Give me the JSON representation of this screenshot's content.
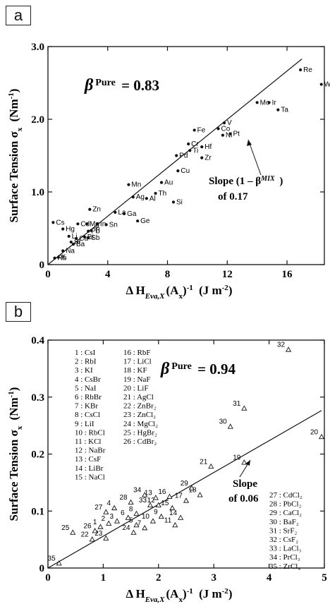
{
  "chart_data": [
    {
      "panel": "a",
      "type": "scatter",
      "xlabel_prefix": "Δ H",
      "xlabel_sub": "Eva,X",
      "xlabel_suffix": "(A",
      "xlabel_sub2": "x",
      "xlabel_end": ")",
      "xlabel_sup": "-1",
      "xlabel_units": "(J m",
      "xlabel_units_sup": "-2",
      "xlabel_units_end": ")",
      "ylabel": "Surface Tension σ",
      "ylabel_sub": "x",
      "ylabel_units": "(Nm",
      "ylabel_units_sup": "-1",
      "ylabel_units_end": ")",
      "xlim": [
        0,
        18.5
      ],
      "ylim": [
        0,
        3.0
      ],
      "xticks": [
        0,
        4,
        8,
        12,
        16
      ],
      "yticks": [
        "0",
        "1.0",
        "2.0",
        "3.0"
      ],
      "ytick_values": [
        0,
        1.0,
        2.0,
        3.0
      ],
      "beta_label": "β",
      "beta_sup": "Pure",
      "beta_value": "= 0.83",
      "slope_text_1": "Slope (1 – β",
      "slope_sup": "MIX",
      "slope_text_1_end": ")",
      "slope_text_2": "of 0.17",
      "fit_line": {
        "x": [
          0,
          17
        ],
        "y": [
          0,
          2.83
        ]
      },
      "points": [
        {
          "label": "Cs",
          "x": 0.35,
          "y": 0.58
        },
        {
          "label": "Rb",
          "x": 0.45,
          "y": 0.09
        },
        {
          "label": "K",
          "x": 0.7,
          "y": 0.1
        },
        {
          "label": "Na",
          "x": 1.0,
          "y": 0.19
        },
        {
          "label": "Li",
          "x": 1.4,
          "y": 0.39
        },
        {
          "label": "Hg",
          "x": 1.0,
          "y": 0.49
        },
        {
          "label": "Sr",
          "x": 1.55,
          "y": 0.31
        },
        {
          "label": "Ba",
          "x": 1.7,
          "y": 0.28
        },
        {
          "label": "Ca",
          "x": 1.9,
          "y": 0.36
        },
        {
          "label": "Cd",
          "x": 2.0,
          "y": 0.56
        },
        {
          "label": "Bi",
          "x": 2.45,
          "y": 0.38
        },
        {
          "label": "Mg",
          "x": 2.6,
          "y": 0.56
        },
        {
          "label": "Sb",
          "x": 2.7,
          "y": 0.37
        },
        {
          "label": "Pb",
          "x": 2.7,
          "y": 0.46
        },
        {
          "label": "Tl",
          "x": 2.9,
          "y": 0.47
        },
        {
          "label": "Zn",
          "x": 2.8,
          "y": 0.76
        },
        {
          "label": "In",
          "x": 3.3,
          "y": 0.56
        },
        {
          "label": "Sn",
          "x": 3.9,
          "y": 0.55
        },
        {
          "label": "La",
          "x": 4.5,
          "y": 0.72
        },
        {
          "label": "Ga",
          "x": 5.1,
          "y": 0.7
        },
        {
          "label": "Ge",
          "x": 6.0,
          "y": 0.6
        },
        {
          "label": "Al",
          "x": 6.6,
          "y": 0.91
        },
        {
          "label": "Ag",
          "x": 5.7,
          "y": 0.93
        },
        {
          "label": "Mn",
          "x": 5.4,
          "y": 1.1
        },
        {
          "label": "Th",
          "x": 7.2,
          "y": 0.98
        },
        {
          "label": "Au",
          "x": 7.6,
          "y": 1.13
        },
        {
          "label": "Si",
          "x": 8.4,
          "y": 0.86
        },
        {
          "label": "Cu",
          "x": 8.7,
          "y": 1.29
        },
        {
          "label": "Pd",
          "x": 8.6,
          "y": 1.5
        },
        {
          "label": "Zr",
          "x": 10.3,
          "y": 1.47
        },
        {
          "label": "Ti",
          "x": 9.5,
          "y": 1.57
        },
        {
          "label": "Hf",
          "x": 10.3,
          "y": 1.62
        },
        {
          "label": "Cr",
          "x": 9.4,
          "y": 1.66
        },
        {
          "label": "Fe",
          "x": 9.8,
          "y": 1.85
        },
        {
          "label": "Co",
          "x": 11.4,
          "y": 1.87
        },
        {
          "label": "Ni",
          "x": 11.7,
          "y": 1.78
        },
        {
          "label": "V",
          "x": 11.8,
          "y": 1.95
        },
        {
          "label": "Pt",
          "x": 12.2,
          "y": 1.8
        },
        {
          "label": "Mo",
          "x": 14.0,
          "y": 2.23
        },
        {
          "label": "Ir",
          "x": 14.8,
          "y": 2.23
        },
        {
          "label": "Ta",
          "x": 15.4,
          "y": 2.13
        },
        {
          "label": "Re",
          "x": 16.9,
          "y": 2.68
        },
        {
          "label": "W",
          "x": 18.3,
          "y": 2.48
        }
      ]
    },
    {
      "panel": "b",
      "type": "scatter",
      "xlabel_prefix": "Δ H",
      "xlabel_sub": "Eva,X",
      "xlabel_suffix": "(A",
      "xlabel_sub2": "x",
      "xlabel_end": ")",
      "xlabel_sup": "-1",
      "xlabel_units": "(J m",
      "xlabel_units_sup": "-2",
      "xlabel_units_end": ")",
      "ylabel": "Surface Tension σ",
      "ylabel_sub": "x",
      "ylabel_units": "(Nm",
      "ylabel_units_sup": "-1",
      "ylabel_units_end": ")",
      "xlim": [
        0,
        5
      ],
      "ylim": [
        0,
        0.4
      ],
      "xticks": [
        0,
        1,
        2,
        3,
        4,
        5
      ],
      "yticks": [
        "0",
        "0.1",
        "0.2",
        "0.3",
        "0.4"
      ],
      "ytick_values": [
        0,
        0.1,
        0.2,
        0.3,
        0.4
      ],
      "beta_label": "β",
      "beta_sup": "Pure",
      "beta_value": "= 0.94",
      "slope_text_1": "Slope",
      "slope_text_2": "of 0.06",
      "fit_line": {
        "x": [
          0,
          4.95
        ],
        "y": [
          0,
          0.2765
        ]
      },
      "legend_left": [
        "1 : CsI",
        "2 : RbI",
        "3 : KI",
        "4 : CsBr",
        "5 : NaI",
        "6 : RbBr",
        "7 : KBr",
        "8 : CsCl",
        "9 : LiI",
        "10 : RbCl",
        "11 : KCl",
        "12 : NaBr",
        "13 : CsF",
        "14 : LiBr",
        "15 : NaCl"
      ],
      "legend_mid": [
        "16 : RbF",
        "17 : LiCl",
        "18 : KF",
        "19 : NaF",
        "20 : LiF",
        "21 : AgCl",
        "22 : ZnBr₂",
        "23 : ZnCl₂",
        "24 : MgCl₂",
        "25 : HgBr₂",
        "26 : CdBr₂"
      ],
      "legend_right": [
        "27 : CdCl₂",
        "28 : PbCl₂",
        "29 : CaCl₂",
        "30 : BaF₂",
        "31 : SrF₂",
        "32 : CsF₂",
        "33 : LaCl₃",
        "34 : PrCl₃",
        "35 : ZrCl₄"
      ],
      "points": [
        {
          "label": "1",
          "x": 0.95,
          "y": 0.072
        },
        {
          "label": "2",
          "x": 1.1,
          "y": 0.078
        },
        {
          "label": "3",
          "x": 1.25,
          "y": 0.082
        },
        {
          "label": "4",
          "x": 1.2,
          "y": 0.105
        },
        {
          "label": "5",
          "x": 1.6,
          "y": 0.075
        },
        {
          "label": "6",
          "x": 1.45,
          "y": 0.088
        },
        {
          "label": "7",
          "x": 1.75,
          "y": 0.07
        },
        {
          "label": "8",
          "x": 1.6,
          "y": 0.095
        },
        {
          "label": "9",
          "x": 2.05,
          "y": 0.09
        },
        {
          "label": "10",
          "x": 1.9,
          "y": 0.082
        },
        {
          "label": "11",
          "x": 2.3,
          "y": 0.075
        },
        {
          "label": "12",
          "x": 2.0,
          "y": 0.11
        },
        {
          "label": "13",
          "x": 1.95,
          "y": 0.123
        },
        {
          "label": "14",
          "x": 2.4,
          "y": 0.088
        },
        {
          "label": "15",
          "x": 2.25,
          "y": 0.105
        },
        {
          "label": "16",
          "x": 2.2,
          "y": 0.125
        },
        {
          "label": "17",
          "x": 2.5,
          "y": 0.118
        },
        {
          "label": "18",
          "x": 2.75,
          "y": 0.128
        },
        {
          "label": "19",
          "x": 3.55,
          "y": 0.185
        },
        {
          "label": "20",
          "x": 4.95,
          "y": 0.23
        },
        {
          "label": "21",
          "x": 2.95,
          "y": 0.178
        },
        {
          "label": "22",
          "x": 0.8,
          "y": 0.05
        },
        {
          "label": "23",
          "x": 1.05,
          "y": 0.052
        },
        {
          "label": "24",
          "x": 1.55,
          "y": 0.062
        },
        {
          "label": "25",
          "x": 0.45,
          "y": 0.062
        },
        {
          "label": "26",
          "x": 0.85,
          "y": 0.065
        },
        {
          "label": "27",
          "x": 1.05,
          "y": 0.098
        },
        {
          "label": "28",
          "x": 1.5,
          "y": 0.115
        },
        {
          "label": "29",
          "x": 2.6,
          "y": 0.14
        },
        {
          "label": "30",
          "x": 3.3,
          "y": 0.248
        },
        {
          "label": "31",
          "x": 3.55,
          "y": 0.28
        },
        {
          "label": "32",
          "x": 4.35,
          "y": 0.383
        },
        {
          "label": "33",
          "x": 1.85,
          "y": 0.11
        },
        {
          "label": "34",
          "x": 1.75,
          "y": 0.128
        },
        {
          "label": "35",
          "x": 0.2,
          "y": 0.008
        }
      ]
    }
  ]
}
